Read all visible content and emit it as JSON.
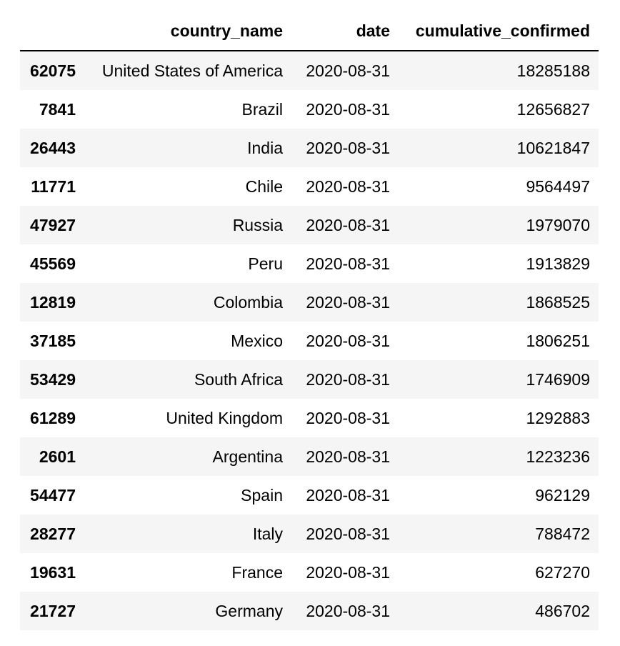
{
  "table": {
    "columns": [
      "",
      "country_name",
      "date",
      "cumulative_confirmed"
    ],
    "rows": [
      {
        "index": "62075",
        "country_name": "United States of America",
        "date": "2020-08-31",
        "cumulative_confirmed": "18285188"
      },
      {
        "index": "7841",
        "country_name": "Brazil",
        "date": "2020-08-31",
        "cumulative_confirmed": "12656827"
      },
      {
        "index": "26443",
        "country_name": "India",
        "date": "2020-08-31",
        "cumulative_confirmed": "10621847"
      },
      {
        "index": "11771",
        "country_name": "Chile",
        "date": "2020-08-31",
        "cumulative_confirmed": "9564497"
      },
      {
        "index": "47927",
        "country_name": "Russia",
        "date": "2020-08-31",
        "cumulative_confirmed": "1979070"
      },
      {
        "index": "45569",
        "country_name": "Peru",
        "date": "2020-08-31",
        "cumulative_confirmed": "1913829"
      },
      {
        "index": "12819",
        "country_name": "Colombia",
        "date": "2020-08-31",
        "cumulative_confirmed": "1868525"
      },
      {
        "index": "37185",
        "country_name": "Mexico",
        "date": "2020-08-31",
        "cumulative_confirmed": "1806251"
      },
      {
        "index": "53429",
        "country_name": "South Africa",
        "date": "2020-08-31",
        "cumulative_confirmed": "1746909"
      },
      {
        "index": "61289",
        "country_name": "United Kingdom",
        "date": "2020-08-31",
        "cumulative_confirmed": "1292883"
      },
      {
        "index": "2601",
        "country_name": "Argentina",
        "date": "2020-08-31",
        "cumulative_confirmed": "1223236"
      },
      {
        "index": "54477",
        "country_name": "Spain",
        "date": "2020-08-31",
        "cumulative_confirmed": "962129"
      },
      {
        "index": "28277",
        "country_name": "Italy",
        "date": "2020-08-31",
        "cumulative_confirmed": "788472"
      },
      {
        "index": "19631",
        "country_name": "France",
        "date": "2020-08-31",
        "cumulative_confirmed": "627270"
      },
      {
        "index": "21727",
        "country_name": "Germany",
        "date": "2020-08-31",
        "cumulative_confirmed": "486702"
      }
    ]
  }
}
